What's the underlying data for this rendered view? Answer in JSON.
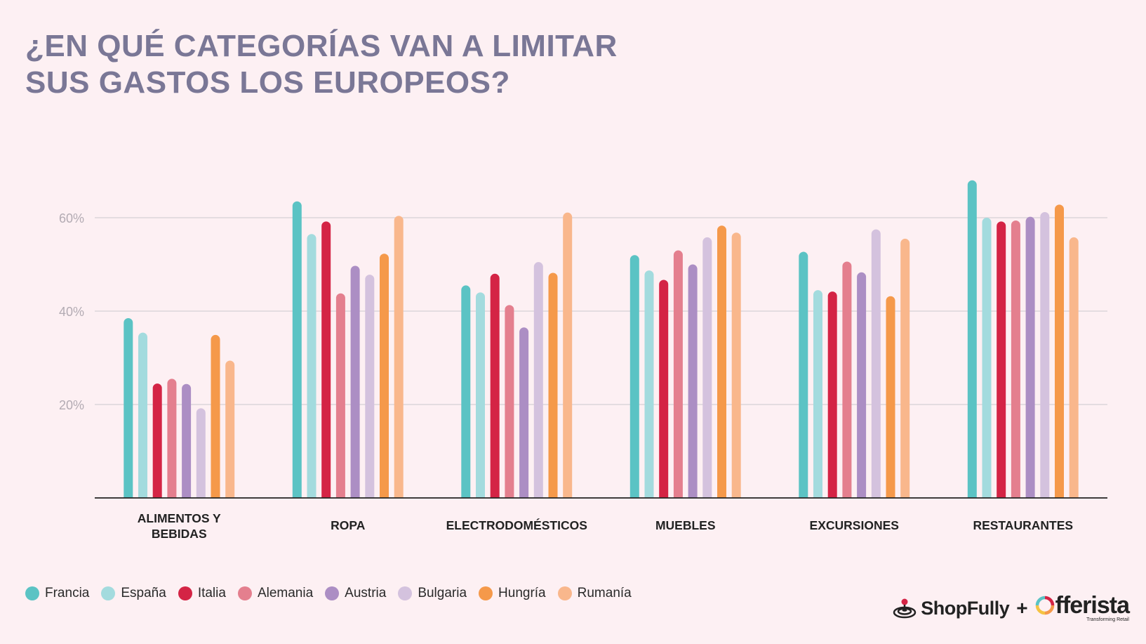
{
  "title": {
    "line1": "¿EN QUÉ CATEGORÍAS VAN A LIMITAR",
    "line2": "SUS GASTOS LOS EUROPEOS?"
  },
  "chart_data": {
    "type": "bar",
    "categories": [
      [
        "ALIMENTOS Y",
        "BEBIDAS"
      ],
      [
        "ROPA"
      ],
      [
        "ELECTRODOMÉSTICOS"
      ],
      [
        "MUEBLES"
      ],
      [
        "EXCURSIONES"
      ],
      [
        "RESTAURANTES"
      ]
    ],
    "yticks": [
      {
        "value": 20,
        "label": "20%"
      },
      {
        "value": 40,
        "label": "40%"
      },
      {
        "value": 60,
        "label": "60%"
      }
    ],
    "ylim": [
      0,
      70
    ],
    "grid": true,
    "legend_position": "bottom-left",
    "series": [
      {
        "name": "Francia",
        "color": "#5bc3c4",
        "values": [
          38.5,
          63.5,
          45.5,
          52,
          52.7,
          68
        ]
      },
      {
        "name": "España",
        "color": "#a3dbde",
        "values": [
          35.4,
          56.5,
          44,
          48.7,
          44.5,
          60
        ]
      },
      {
        "name": "Italia",
        "color": "#d42445",
        "values": [
          24.5,
          59.2,
          48,
          46.7,
          44.2,
          59.2
        ]
      },
      {
        "name": "Alemania",
        "color": "#e47f8e",
        "values": [
          25.5,
          43.8,
          41.3,
          53,
          50.6,
          59.4
        ]
      },
      {
        "name": "Austria",
        "color": "#ac8ec4",
        "values": [
          24.4,
          49.7,
          36.5,
          50,
          48.3,
          60.2
        ]
      },
      {
        "name": "Bulgaria",
        "color": "#d4c2de",
        "values": [
          19.2,
          47.8,
          50.5,
          55.8,
          57.5,
          61.2
        ]
      },
      {
        "name": "Hungría",
        "color": "#f5994a",
        "values": [
          34.9,
          52.3,
          48.2,
          58.3,
          43.2,
          62.8
        ]
      },
      {
        "name": "Rumanía",
        "color": "#f9b78c",
        "values": [
          29.4,
          60.4,
          61.1,
          56.8,
          55.5,
          55.8
        ]
      }
    ]
  },
  "logos": {
    "shopfully": "ShopFully",
    "plus": "+",
    "offerista": "fferista",
    "offerista_tagline": "Transforming Retail"
  }
}
